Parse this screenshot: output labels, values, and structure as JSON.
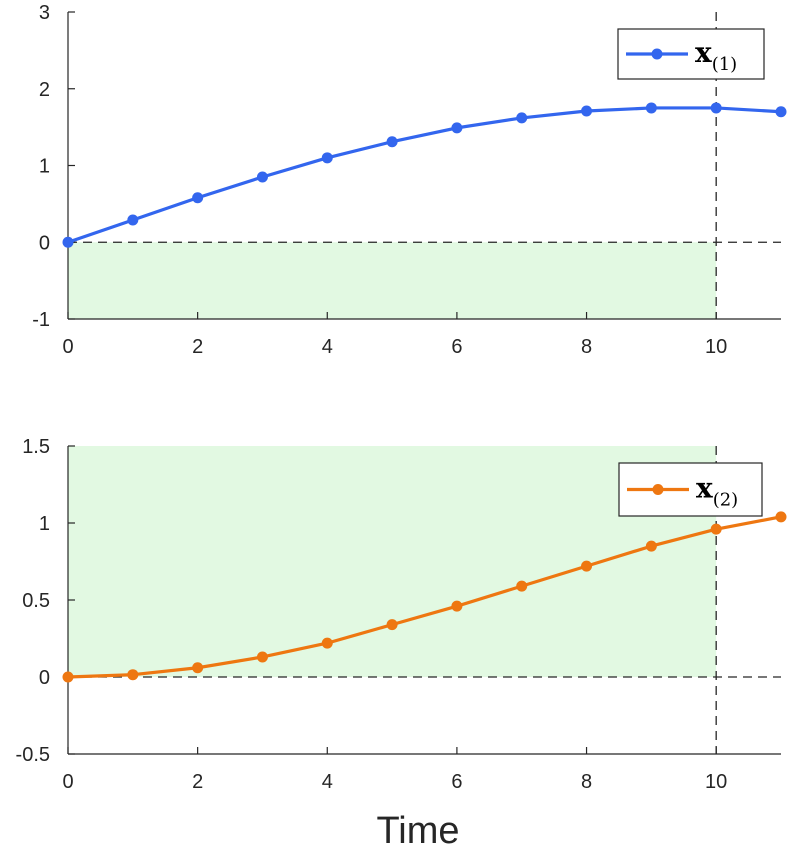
{
  "chart_data": [
    {
      "type": "line",
      "title": "",
      "xlabel": "",
      "ylabel": "",
      "xlim": [
        0,
        11
      ],
      "ylim": [
        -1,
        3
      ],
      "xticks": [
        0,
        2,
        4,
        6,
        8,
        10
      ],
      "xtick_labels": [
        "0",
        "2",
        "4",
        "6",
        "8",
        "10"
      ],
      "yticks": [
        -1,
        0,
        1,
        2,
        3
      ],
      "ytick_labels": [
        "-1",
        "0",
        "1",
        "2",
        "3"
      ],
      "grid": false,
      "legend_position": "top-right",
      "shaded_region": {
        "x": [
          0,
          10
        ],
        "y": [
          -1,
          0
        ],
        "color": "#e2f9e2"
      },
      "reference_lines": {
        "horizontal": 0,
        "vertical": 10
      },
      "series": [
        {
          "name": "x",
          "name_subscript": "(1)",
          "color": "#3366ee",
          "x": [
            0,
            1,
            2,
            3,
            4,
            5,
            6,
            7,
            8,
            9,
            10,
            11
          ],
          "y": [
            0,
            0.29,
            0.58,
            0.85,
            1.1,
            1.31,
            1.49,
            1.62,
            1.71,
            1.75,
            1.75,
            1.7
          ]
        }
      ]
    },
    {
      "type": "line",
      "title": "",
      "xlabel": "Time",
      "ylabel": "",
      "xlim": [
        0,
        11
      ],
      "ylim": [
        -0.5,
        1.5
      ],
      "xticks": [
        0,
        2,
        4,
        6,
        8,
        10
      ],
      "xtick_labels": [
        "0",
        "2",
        "4",
        "6",
        "8",
        "10"
      ],
      "yticks": [
        -0.5,
        0,
        0.5,
        1,
        1.5
      ],
      "ytick_labels": [
        "-0.5",
        "0",
        "0.5",
        "1",
        "1.5"
      ],
      "grid": false,
      "legend_position": "top-right",
      "shaded_region": {
        "x": [
          0,
          10
        ],
        "y": [
          0,
          1.5
        ],
        "color": "#e2f9e2"
      },
      "reference_lines": {
        "horizontal": 0,
        "vertical": 10
      },
      "series": [
        {
          "name": "x",
          "name_subscript": "(2)",
          "color": "#ee7711",
          "x": [
            0,
            1,
            2,
            3,
            4,
            5,
            6,
            7,
            8,
            9,
            10,
            11
          ],
          "y": [
            0,
            0.015,
            0.06,
            0.13,
            0.22,
            0.34,
            0.46,
            0.59,
            0.72,
            0.85,
            0.96,
            1.04
          ]
        }
      ]
    }
  ]
}
